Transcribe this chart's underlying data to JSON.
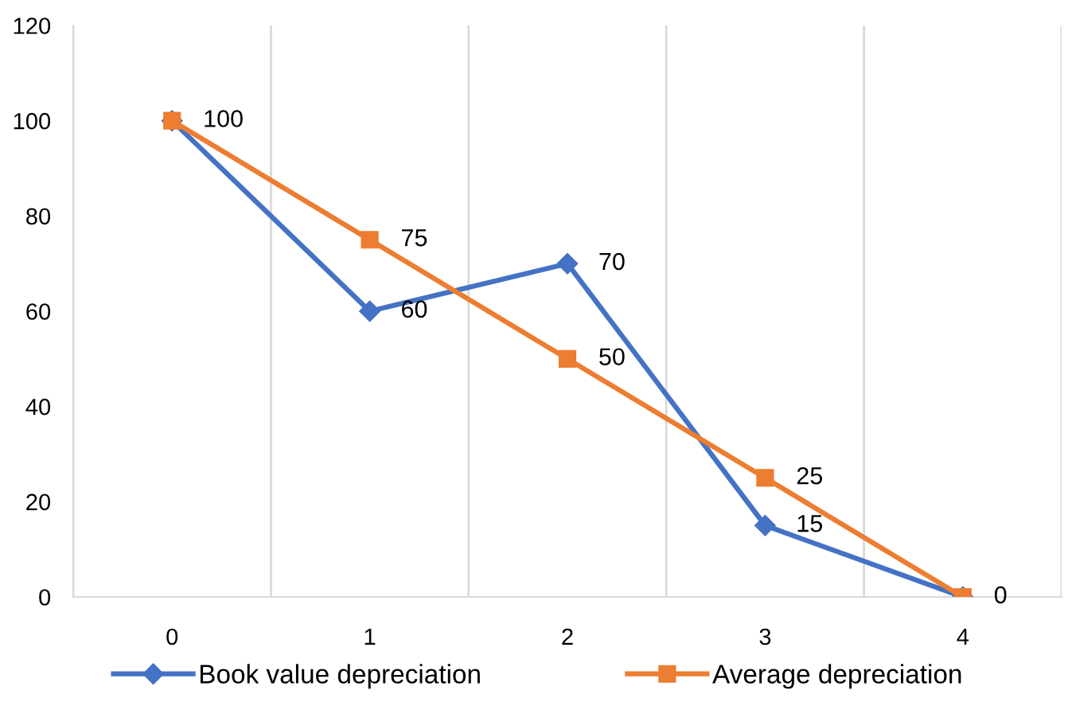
{
  "chart_data": {
    "type": "line",
    "categories": [
      "0",
      "1",
      "2",
      "3",
      "4"
    ],
    "series": [
      {
        "name": "Book value depreciation",
        "color": "#4472c4",
        "marker": "diamond",
        "values": [
          100,
          60,
          70,
          15,
          0
        ],
        "value_labels": [
          null,
          "60",
          "70",
          "15",
          null
        ]
      },
      {
        "name": "Average depreciation",
        "color": "#ed7d31",
        "marker": "square",
        "values": [
          100,
          75,
          50,
          25,
          0
        ],
        "value_labels": [
          "100",
          "75",
          "50",
          "25",
          "0"
        ]
      }
    ],
    "ylim": [
      0,
      120
    ],
    "yticks": [
      0,
      20,
      40,
      60,
      80,
      100,
      120
    ],
    "grid": "x",
    "legend": "bottom"
  }
}
